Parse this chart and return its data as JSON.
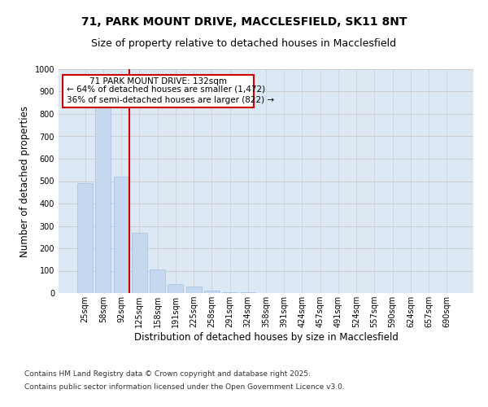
{
  "title_line1": "71, PARK MOUNT DRIVE, MACCLESFIELD, SK11 8NT",
  "title_line2": "Size of property relative to detached houses in Macclesfield",
  "xlabel": "Distribution of detached houses by size in Macclesfield",
  "ylabel": "Number of detached properties",
  "categories": [
    "25sqm",
    "58sqm",
    "92sqm",
    "125sqm",
    "158sqm",
    "191sqm",
    "225sqm",
    "258sqm",
    "291sqm",
    "324sqm",
    "358sqm",
    "391sqm",
    "424sqm",
    "457sqm",
    "491sqm",
    "524sqm",
    "557sqm",
    "590sqm",
    "624sqm",
    "657sqm",
    "690sqm"
  ],
  "values": [
    490,
    835,
    520,
    270,
    105,
    40,
    30,
    10,
    5,
    2,
    1,
    0,
    0,
    0,
    0,
    0,
    0,
    0,
    0,
    0,
    0
  ],
  "bar_color": "#c5d8f0",
  "bar_edgecolor": "#a0bedd",
  "vline_x_idx": 2,
  "vline_color": "#cc0000",
  "ylim": [
    0,
    1000
  ],
  "yticks": [
    0,
    100,
    200,
    300,
    400,
    500,
    600,
    700,
    800,
    900,
    1000
  ],
  "grid_color": "#cccccc",
  "bg_color": "#dde8f5",
  "annotation_title": "71 PARK MOUNT DRIVE: 132sqm",
  "annotation_line1": "← 64% of detached houses are smaller (1,472)",
  "annotation_line2": "36% of semi-detached houses are larger (822) →",
  "annotation_box_color": "#ffffff",
  "annotation_border_color": "#cc0000",
  "footer_line1": "Contains HM Land Registry data © Crown copyright and database right 2025.",
  "footer_line2": "Contains public sector information licensed under the Open Government Licence v3.0.",
  "title_fontsize": 10,
  "subtitle_fontsize": 9,
  "axis_label_fontsize": 8.5,
  "tick_fontsize": 7,
  "footer_fontsize": 6.5,
  "annotation_fontsize": 7.5
}
